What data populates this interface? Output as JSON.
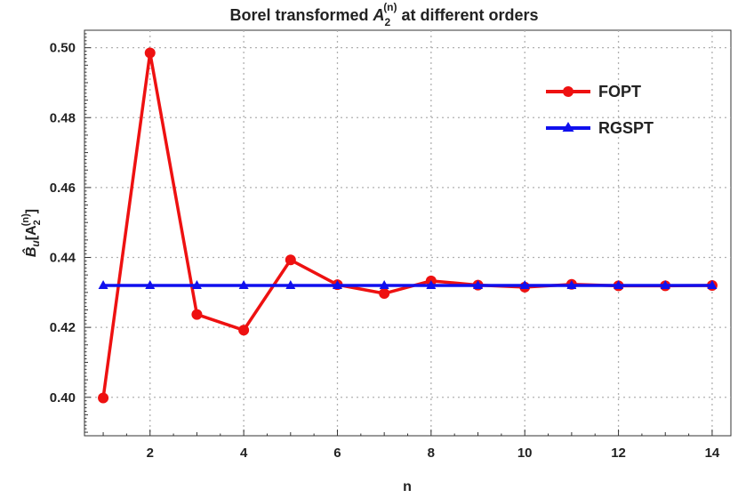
{
  "chart_data": {
    "type": "line",
    "title_prefix": "Borel transformed ",
    "title_symbol": "A",
    "title_sub": "2",
    "title_sup": "(n)",
    "title_suffix": " at different orders",
    "xlabel": "n",
    "ylabel": "B̂u[A2(n)]",
    "ylabel_prefix": "B̂",
    "ylabel_sub_u": "u",
    "ylabel_bracket_open": "[A",
    "ylabel_sub": "2",
    "ylabel_sup": "(n)",
    "ylabel_bracket_close": "]",
    "xlim": [
      0.6,
      14.4
    ],
    "ylim": [
      0.389,
      0.505
    ],
    "x_ticks": [
      2,
      4,
      6,
      8,
      10,
      12,
      14
    ],
    "y_ticks": [
      0.4,
      0.42,
      0.44,
      0.46,
      0.48,
      0.5
    ],
    "x_tick_labels": [
      "2",
      "4",
      "6",
      "8",
      "10",
      "12",
      "14"
    ],
    "y_tick_labels": [
      "0.40",
      "0.42",
      "0.44",
      "0.46",
      "0.48",
      "0.50"
    ],
    "grid": true,
    "legend_position": "top-right",
    "x": [
      1,
      2,
      3,
      4,
      5,
      6,
      7,
      8,
      9,
      10,
      11,
      12,
      13,
      14
    ],
    "series": [
      {
        "name": "FOPT",
        "color": "#ee1111",
        "marker": "circle",
        "values": [
          0.3998,
          0.4985,
          0.4237,
          0.4192,
          0.4393,
          0.4322,
          0.4297,
          0.4333,
          0.4321,
          0.4315,
          0.4323,
          0.4319,
          0.4319,
          0.432
        ]
      },
      {
        "name": "RGSPT",
        "color": "#1010ee",
        "marker": "triangle",
        "values": [
          0.432,
          0.432,
          0.432,
          0.432,
          0.432,
          0.432,
          0.432,
          0.432,
          0.432,
          0.432,
          0.432,
          0.432,
          0.432,
          0.432
        ]
      }
    ]
  }
}
